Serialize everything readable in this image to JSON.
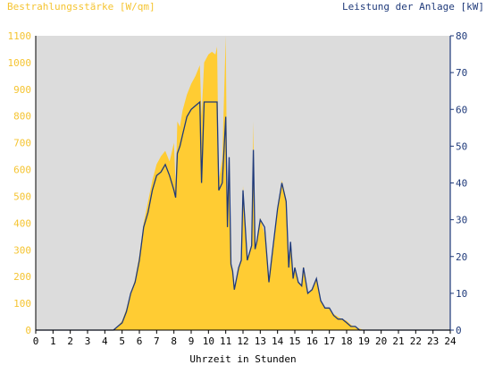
{
  "chart_data": {
    "type": "area",
    "y_left_title": "Bestrahlungsstärke [W/qm]",
    "y_right_title": "Leistung der Anlage [kW]",
    "xlabel": "Uhrzeit in Stunden",
    "xlim": [
      0,
      24
    ],
    "ylim_left": [
      0,
      1100
    ],
    "ylim_right": [
      0,
      80
    ],
    "x_ticks": [
      "0",
      "1",
      "2",
      "3",
      "4",
      "5",
      "6",
      "7",
      "8",
      "9",
      "10",
      "11",
      "12",
      "13",
      "14",
      "15",
      "16",
      "17",
      "18",
      "19",
      "20",
      "21",
      "22",
      "23",
      "24"
    ],
    "y_left_ticks": [
      "0",
      "100",
      "200",
      "300",
      "400",
      "500",
      "600",
      "700",
      "800",
      "900",
      "1000",
      "1100"
    ],
    "y_right_ticks": [
      "0",
      "10",
      "20",
      "30",
      "40",
      "50",
      "60",
      "70",
      "80"
    ],
    "colors": {
      "irradiance": "#ffcc33",
      "power": "#1f3a7a",
      "plot_bg": "#dcdcdc",
      "left_axis": "#f5c431",
      "right_axis": "#1f3a7a"
    },
    "series": [
      {
        "key": "irradiance",
        "unit": "W/qm",
        "x": [
          0,
          4.5,
          4.75,
          5,
          5.25,
          5.5,
          5.75,
          6,
          6.25,
          6.5,
          6.75,
          7,
          7.25,
          7.5,
          7.75,
          8,
          8.1,
          8.2,
          8.35,
          8.5,
          8.75,
          9,
          9.25,
          9.5,
          9.6,
          9.75,
          10,
          10.2,
          10.4,
          10.5,
          10.6,
          10.8,
          11,
          11.1,
          11.2,
          11.3,
          11.4,
          11.5,
          11.75,
          11.9,
          12,
          12.25,
          12.5,
          12.6,
          12.7,
          12.8,
          13,
          13.25,
          13.5,
          13.75,
          14,
          14.25,
          14.5,
          14.65,
          14.75,
          14.9,
          15,
          15.2,
          15.4,
          15.5,
          15.75,
          16,
          16.25,
          16.5,
          16.75,
          17,
          17.25,
          17.5,
          17.75,
          18,
          18.25,
          18.5,
          18.75,
          19,
          19.25,
          19.5,
          19.75,
          20,
          20.25,
          20.5,
          24
        ],
        "y": [
          0,
          0,
          15,
          35,
          80,
          140,
          190,
          280,
          400,
          480,
          560,
          620,
          650,
          670,
          630,
          700,
          540,
          780,
          760,
          820,
          880,
          920,
          950,
          990,
          800,
          1000,
          1030,
          1040,
          1030,
          1060,
          560,
          640,
          1100,
          380,
          640,
          250,
          230,
          150,
          230,
          270,
          540,
          270,
          320,
          780,
          300,
          340,
          420,
          360,
          180,
          320,
          440,
          560,
          490,
          230,
          330,
          200,
          240,
          180,
          170,
          240,
          140,
          150,
          190,
          110,
          80,
          80,
          60,
          50,
          40,
          35,
          20,
          10,
          6,
          0,
          0,
          0,
          0,
          0,
          0,
          0,
          0
        ],
        "values": [
          0,
          0,
          15,
          35,
          80,
          140,
          190,
          280,
          400,
          480,
          560,
          620,
          650,
          670,
          630,
          700,
          540,
          780,
          760,
          820,
          880,
          920,
          950,
          990,
          800,
          1000,
          1030,
          1040,
          1030,
          1060,
          560,
          640,
          1100,
          380,
          640,
          250,
          230,
          150,
          230,
          270,
          540,
          270,
          320,
          780,
          300,
          340,
          420,
          360,
          180,
          320,
          440,
          560,
          490,
          230,
          330,
          200,
          240,
          180,
          170,
          240,
          140,
          150,
          190,
          110,
          80,
          80,
          60,
          50,
          40,
          35,
          20,
          10,
          6,
          0,
          0,
          0,
          0,
          0,
          0,
          0,
          0
        ]
      },
      {
        "key": "power",
        "unit": "kW",
        "x": [
          0,
          4.5,
          4.75,
          5,
          5.25,
          5.5,
          5.75,
          6,
          6.25,
          6.5,
          6.75,
          7,
          7.25,
          7.5,
          7.75,
          8,
          8.1,
          8.2,
          8.35,
          8.5,
          8.75,
          9,
          9.25,
          9.5,
          9.6,
          9.75,
          10,
          10.2,
          10.4,
          10.5,
          10.6,
          10.8,
          11,
          11.1,
          11.2,
          11.3,
          11.4,
          11.5,
          11.75,
          11.9,
          12,
          12.25,
          12.5,
          12.6,
          12.7,
          12.8,
          13,
          13.25,
          13.5,
          13.75,
          14,
          14.25,
          14.5,
          14.65,
          14.75,
          14.9,
          15,
          15.2,
          15.4,
          15.5,
          15.75,
          16,
          16.25,
          16.5,
          16.75,
          17,
          17.25,
          17.5,
          17.75,
          18,
          18.25,
          18.5,
          18.75,
          19,
          19.25,
          19.5,
          19.75,
          20,
          20.25,
          20.5,
          24
        ],
        "y": [
          0,
          0,
          1,
          2,
          5,
          10,
          13,
          19,
          28,
          32,
          38,
          42,
          43,
          45,
          42,
          38,
          36,
          48,
          50,
          53,
          58,
          60,
          61,
          62,
          40,
          62,
          62,
          62,
          62,
          62,
          38,
          40,
          58,
          28,
          47,
          18,
          16,
          11,
          17,
          19,
          38,
          19,
          23,
          49,
          22,
          24,
          30,
          28,
          13,
          23,
          33,
          40,
          35,
          17,
          24,
          14,
          17,
          13,
          12,
          17,
          10,
          11,
          14,
          8,
          6,
          6,
          4,
          3,
          3,
          2,
          1,
          1,
          0,
          0,
          0,
          0,
          0,
          0,
          0,
          0,
          0
        ],
        "values": [
          0,
          0,
          1,
          2,
          5,
          10,
          13,
          19,
          28,
          32,
          38,
          42,
          43,
          45,
          42,
          38,
          36,
          48,
          50,
          53,
          58,
          60,
          61,
          62,
          40,
          62,
          62,
          62,
          62,
          62,
          38,
          40,
          58,
          28,
          47,
          18,
          16,
          11,
          17,
          19,
          38,
          19,
          23,
          49,
          22,
          24,
          30,
          28,
          13,
          23,
          33,
          40,
          35,
          17,
          24,
          14,
          17,
          13,
          12,
          17,
          10,
          11,
          14,
          8,
          6,
          6,
          4,
          3,
          3,
          2,
          1,
          1,
          0,
          0,
          0,
          0,
          0,
          0,
          0,
          0,
          0
        ]
      }
    ]
  }
}
